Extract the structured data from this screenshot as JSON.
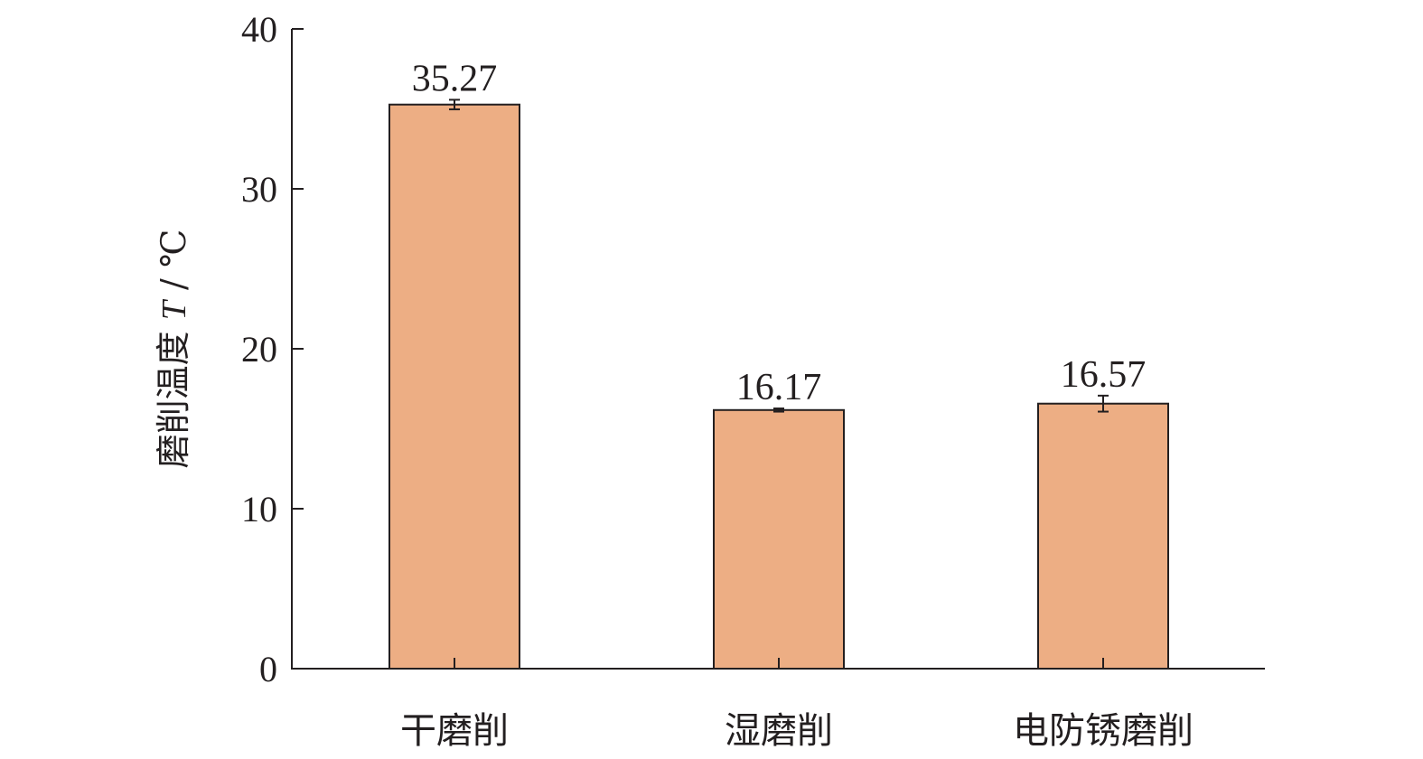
{
  "chart_data": {
    "type": "bar",
    "title": "",
    "xlabel": "",
    "ylabel_prefix": "磨削温度 ",
    "ylabel_var": "T",
    "ylabel_suffix": " / ℃",
    "categories": [
      "干磨削",
      "湿磨削",
      "电防锈磨削"
    ],
    "values": [
      35.27,
      16.17,
      16.57
    ],
    "value_labels": [
      "35.27",
      "16.17",
      "16.57"
    ],
    "errors": [
      0.3,
      0.1,
      0.5
    ],
    "ylim": [
      0,
      40
    ],
    "yticks": [
      0,
      10,
      20,
      30,
      40
    ],
    "ytick_labels": [
      "0",
      "10",
      "20",
      "30",
      "40"
    ],
    "grid": false,
    "colors": {
      "bar_fill": "#edae84",
      "bar_stroke": "#231f20",
      "axis": "#231f20"
    }
  }
}
